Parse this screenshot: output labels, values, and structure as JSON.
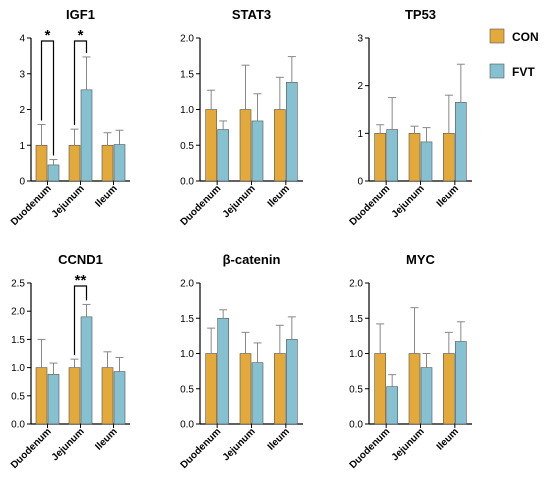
{
  "colors": {
    "con": "#E3A93B",
    "fvt": "#85C1D0",
    "axis": "#000000"
  },
  "legend": [
    {
      "name": "CON",
      "color": "#E3A93B"
    },
    {
      "name": "FVT",
      "color": "#85C1D0"
    }
  ],
  "chart_data": [
    {
      "type": "bar",
      "title": "IGF1",
      "categories": [
        "Duodenum",
        "Jejunum",
        "Ileum"
      ],
      "ylim": [
        0,
        4
      ],
      "yticks": [
        0,
        1,
        2,
        3,
        4
      ],
      "ytick_labels": [
        "0",
        "1",
        "2",
        "3",
        "4"
      ],
      "series": [
        {
          "name": "CON",
          "values": [
            1.0,
            1.0,
            1.0
          ],
          "errors": [
            0.58,
            0.45,
            0.35
          ]
        },
        {
          "name": "FVT",
          "values": [
            0.45,
            2.55,
            1.02
          ],
          "errors": [
            0.15,
            0.92,
            0.4
          ]
        }
      ],
      "significance": [
        {
          "category": 0,
          "label": "*"
        },
        {
          "category": 1,
          "label": "*"
        }
      ]
    },
    {
      "type": "bar",
      "title": "STAT3",
      "categories": [
        "Duodenum",
        "Jejunum",
        "Ileum"
      ],
      "ylim": [
        0,
        2
      ],
      "yticks": [
        0,
        0.5,
        1,
        1.5,
        2
      ],
      "ytick_labels": [
        "0.0",
        "0.5",
        "1.0",
        "1.5",
        "2.0"
      ],
      "series": [
        {
          "name": "CON",
          "values": [
            1.0,
            1.0,
            1.0
          ],
          "errors": [
            0.27,
            0.62,
            0.45
          ]
        },
        {
          "name": "FVT",
          "values": [
            0.72,
            0.84,
            1.38
          ],
          "errors": [
            0.12,
            0.38,
            0.36
          ]
        }
      ],
      "significance": []
    },
    {
      "type": "bar",
      "title": "TP53",
      "categories": [
        "Duodenum",
        "Jejunum",
        "Ileum"
      ],
      "ylim": [
        0,
        3
      ],
      "yticks": [
        0,
        1,
        2,
        3
      ],
      "ytick_labels": [
        "0",
        "1",
        "2",
        "3"
      ],
      "series": [
        {
          "name": "CON",
          "values": [
            1.0,
            1.0,
            1.0
          ],
          "errors": [
            0.18,
            0.15,
            0.8
          ]
        },
        {
          "name": "FVT",
          "values": [
            1.08,
            0.82,
            1.65
          ],
          "errors": [
            0.67,
            0.3,
            0.8
          ]
        }
      ],
      "significance": []
    },
    {
      "type": "bar",
      "title": "CCND1",
      "categories": [
        "Duodenum",
        "Jejunum",
        "Ileum"
      ],
      "ylim": [
        0,
        2.5
      ],
      "yticks": [
        0,
        0.5,
        1,
        1.5,
        2,
        2.5
      ],
      "ytick_labels": [
        "0.0",
        "0.5",
        "1.0",
        "1.5",
        "2.0",
        "2.5"
      ],
      "series": [
        {
          "name": "CON",
          "values": [
            1.0,
            1.0,
            1.0
          ],
          "errors": [
            0.5,
            0.15,
            0.28
          ]
        },
        {
          "name": "FVT",
          "values": [
            0.88,
            1.9,
            0.93
          ],
          "errors": [
            0.2,
            0.22,
            0.25
          ]
        }
      ],
      "significance": [
        {
          "category": 1,
          "label": "**"
        }
      ]
    },
    {
      "type": "bar",
      "title": "β-catenin",
      "categories": [
        "Duodenum",
        "Jejunum",
        "Ileum"
      ],
      "ylim": [
        0,
        2
      ],
      "yticks": [
        0,
        0.5,
        1,
        1.5,
        2
      ],
      "ytick_labels": [
        "0.0",
        "0.5",
        "1.0",
        "1.5",
        "2.0"
      ],
      "series": [
        {
          "name": "CON",
          "values": [
            1.0,
            1.0,
            1.0
          ],
          "errors": [
            0.36,
            0.3,
            0.4
          ]
        },
        {
          "name": "FVT",
          "values": [
            1.5,
            0.87,
            1.2
          ],
          "errors": [
            0.12,
            0.28,
            0.32
          ]
        }
      ],
      "significance": []
    },
    {
      "type": "bar",
      "title": "MYC",
      "categories": [
        "Duodenum",
        "Jejunum",
        "Ileum"
      ],
      "ylim": [
        0,
        2
      ],
      "yticks": [
        0,
        0.5,
        1,
        1.5,
        2
      ],
      "ytick_labels": [
        "0.0",
        "0.5",
        "1.0",
        "1.5",
        "2.0"
      ],
      "series": [
        {
          "name": "CON",
          "values": [
            1.0,
            1.0,
            1.0
          ],
          "errors": [
            0.42,
            0.65,
            0.3
          ]
        },
        {
          "name": "FVT",
          "values": [
            0.53,
            0.8,
            1.17
          ],
          "errors": [
            0.17,
            0.2,
            0.28
          ]
        }
      ],
      "significance": []
    }
  ]
}
